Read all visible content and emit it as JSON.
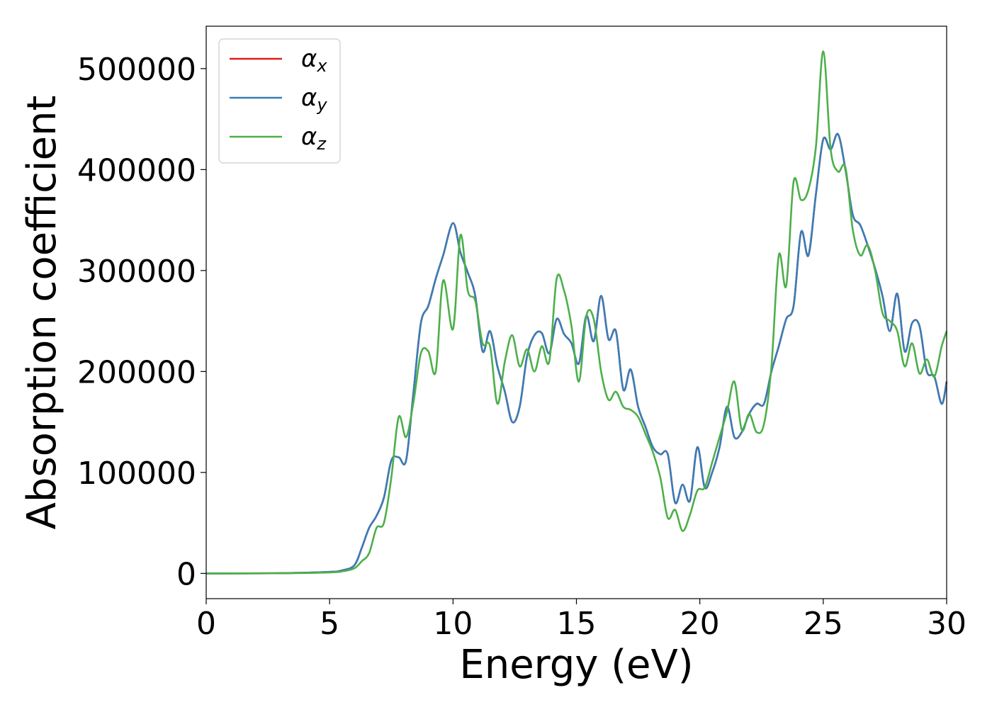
{
  "chart_data": {
    "type": "line",
    "xlabel": "Energy (eV)",
    "ylabel": "Absorption coefficient",
    "xlim": [
      0,
      30
    ],
    "ylim": [
      -25000,
      542000
    ],
    "xticks": [
      0,
      5,
      10,
      15,
      20,
      25,
      30
    ],
    "yticks": [
      0,
      100000,
      200000,
      300000,
      400000,
      500000
    ],
    "grid": false,
    "legend_position": "top-left",
    "series": [
      {
        "name": "α",
        "subscript": "x",
        "color": "#e41a1c",
        "x": [
          0,
          3,
          5,
          5.5,
          6,
          6.3,
          6.6,
          6.9,
          7.2,
          7.5,
          7.8,
          8.1,
          8.4,
          8.7,
          9.0,
          9.3,
          9.6,
          10.0,
          10.3,
          10.6,
          10.9,
          11.2,
          11.5,
          11.8,
          12.1,
          12.4,
          12.7,
          13.0,
          13.3,
          13.6,
          13.9,
          14.2,
          14.5,
          14.8,
          15.1,
          15.4,
          15.7,
          16.0,
          16.3,
          16.6,
          16.9,
          17.2,
          17.5,
          17.8,
          18.1,
          18.4,
          18.7,
          19.0,
          19.3,
          19.6,
          19.9,
          20.2,
          20.5,
          20.8,
          21.1,
          21.4,
          21.7,
          22.0,
          22.3,
          22.6,
          22.9,
          23.2,
          23.5,
          23.8,
          24.1,
          24.4,
          24.7,
          25.0,
          25.3,
          25.6,
          25.9,
          26.2,
          26.5,
          26.8,
          27.1,
          27.4,
          27.7,
          28.0,
          28.3,
          28.6,
          28.9,
          29.2,
          29.5,
          29.8,
          30.0
        ],
        "values": [
          0,
          200,
          1500,
          3000,
          8000,
          25000,
          45000,
          57000,
          75000,
          112000,
          115000,
          112000,
          180000,
          248000,
          265000,
          292000,
          315000,
          347000,
          318000,
          298000,
          275000,
          220000,
          240000,
          205000,
          180000,
          150000,
          165000,
          215000,
          236000,
          238000,
          218000,
          252000,
          237000,
          228000,
          208000,
          255000,
          230000,
          275000,
          232000,
          240000,
          182000,
          202000,
          165000,
          145000,
          125000,
          118000,
          118000,
          70000,
          88000,
          72000,
          125000,
          85000,
          100000,
          125000,
          165000,
          135000,
          140000,
          158000,
          168000,
          168000,
          200000,
          225000,
          252000,
          265000,
          338000,
          315000,
          375000,
          430000,
          420000,
          435000,
          400000,
          355000,
          345000,
          325000,
          302000,
          275000,
          240000,
          277000,
          220000,
          248000,
          245000,
          200000,
          195000,
          168000,
          190000
        ]
      },
      {
        "name": "α",
        "subscript": "y",
        "color": "#377eb8",
        "x": [
          0,
          3,
          5,
          5.5,
          6,
          6.3,
          6.6,
          6.9,
          7.2,
          7.5,
          7.8,
          8.1,
          8.4,
          8.7,
          9.0,
          9.3,
          9.6,
          10.0,
          10.3,
          10.6,
          10.9,
          11.2,
          11.5,
          11.8,
          12.1,
          12.4,
          12.7,
          13.0,
          13.3,
          13.6,
          13.9,
          14.2,
          14.5,
          14.8,
          15.1,
          15.4,
          15.7,
          16.0,
          16.3,
          16.6,
          16.9,
          17.2,
          17.5,
          17.8,
          18.1,
          18.4,
          18.7,
          19.0,
          19.3,
          19.6,
          19.9,
          20.2,
          20.5,
          20.8,
          21.1,
          21.4,
          21.7,
          22.0,
          22.3,
          22.6,
          22.9,
          23.2,
          23.5,
          23.8,
          24.1,
          24.4,
          24.7,
          25.0,
          25.3,
          25.6,
          25.9,
          26.2,
          26.5,
          26.8,
          27.1,
          27.4,
          27.7,
          28.0,
          28.3,
          28.6,
          28.9,
          29.2,
          29.5,
          29.8,
          30.0
        ],
        "values": [
          0,
          200,
          1500,
          3000,
          8000,
          25000,
          45000,
          57000,
          75000,
          112000,
          115000,
          112000,
          180000,
          248000,
          265000,
          292000,
          315000,
          347000,
          318000,
          298000,
          275000,
          220000,
          240000,
          205000,
          180000,
          150000,
          165000,
          215000,
          236000,
          238000,
          218000,
          252000,
          237000,
          228000,
          208000,
          255000,
          230000,
          275000,
          232000,
          240000,
          182000,
          202000,
          165000,
          145000,
          125000,
          118000,
          118000,
          70000,
          88000,
          72000,
          125000,
          85000,
          100000,
          125000,
          165000,
          135000,
          140000,
          158000,
          168000,
          168000,
          200000,
          225000,
          252000,
          265000,
          338000,
          315000,
          375000,
          430000,
          420000,
          435000,
          400000,
          355000,
          345000,
          325000,
          302000,
          275000,
          240000,
          277000,
          220000,
          248000,
          245000,
          200000,
          195000,
          168000,
          190000
        ]
      },
      {
        "name": "α",
        "subscript": "z",
        "color": "#4daf4a",
        "x": [
          0,
          3,
          5,
          5.5,
          6,
          6.3,
          6.6,
          6.9,
          7.2,
          7.5,
          7.8,
          8.1,
          8.4,
          8.7,
          9.0,
          9.3,
          9.6,
          10.0,
          10.3,
          10.6,
          10.9,
          11.2,
          11.5,
          11.8,
          12.1,
          12.4,
          12.7,
          13.0,
          13.3,
          13.6,
          13.9,
          14.2,
          14.5,
          14.8,
          15.1,
          15.4,
          15.7,
          16.0,
          16.3,
          16.6,
          16.9,
          17.2,
          17.5,
          17.8,
          18.1,
          18.4,
          18.7,
          19.0,
          19.3,
          19.6,
          19.9,
          20.2,
          20.5,
          20.8,
          21.1,
          21.4,
          21.7,
          22.0,
          22.3,
          22.6,
          22.9,
          23.2,
          23.5,
          23.8,
          24.1,
          24.4,
          24.7,
          25.0,
          25.3,
          25.6,
          25.9,
          26.2,
          26.5,
          26.8,
          27.1,
          27.4,
          27.7,
          28.0,
          28.3,
          28.6,
          28.9,
          29.2,
          29.5,
          29.8,
          30.0
        ],
        "values": [
          0,
          150,
          1000,
          2000,
          5000,
          12000,
          20000,
          45000,
          50000,
          95000,
          155000,
          135000,
          170000,
          218000,
          220000,
          200000,
          290000,
          242000,
          335000,
          280000,
          270000,
          228000,
          225000,
          168000,
          210000,
          236000,
          205000,
          222000,
          200000,
          225000,
          210000,
          292000,
          280000,
          245000,
          190000,
          255000,
          252000,
          200000,
          172000,
          180000,
          165000,
          162000,
          155000,
          138000,
          120000,
          95000,
          55000,
          63000,
          42000,
          58000,
          82000,
          85000,
          110000,
          135000,
          160000,
          190000,
          142000,
          158000,
          140000,
          148000,
          205000,
          315000,
          285000,
          388000,
          370000,
          380000,
          422000,
          517000,
          420000,
          398000,
          402000,
          340000,
          315000,
          325000,
          300000,
          258000,
          250000,
          240000,
          205000,
          228000,
          198000,
          212000,
          195000,
          225000,
          240000
        ]
      }
    ]
  }
}
